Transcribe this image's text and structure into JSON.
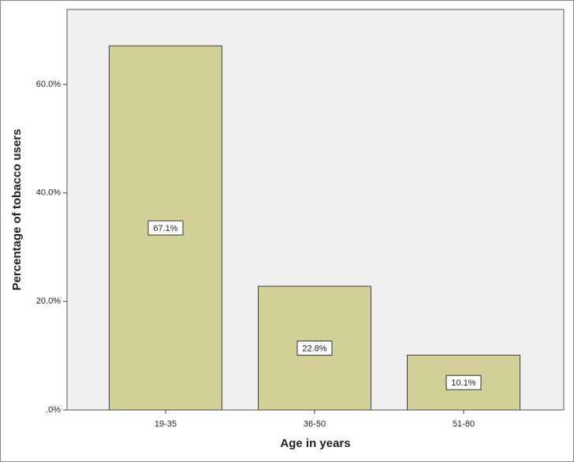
{
  "chart_data": {
    "type": "bar",
    "x_label": "Age in years",
    "y_label": "Percentage of tobacco users",
    "categories": [
      "19-35",
      "36-50",
      "51-80"
    ],
    "values": [
      67.1,
      22.8,
      10.1
    ],
    "value_labels": [
      "67.1%",
      "22.8%",
      "10.1%"
    ],
    "color": "#d3cf98",
    "ylim": [
      0,
      73.8
    ],
    "yticks": [
      {
        "value": 0,
        "label": ".0%"
      },
      {
        "value": 20,
        "label": "20.0%"
      },
      {
        "value": 40,
        "label": "40.0%"
      },
      {
        "value": 60,
        "label": "60.0%"
      }
    ]
  }
}
